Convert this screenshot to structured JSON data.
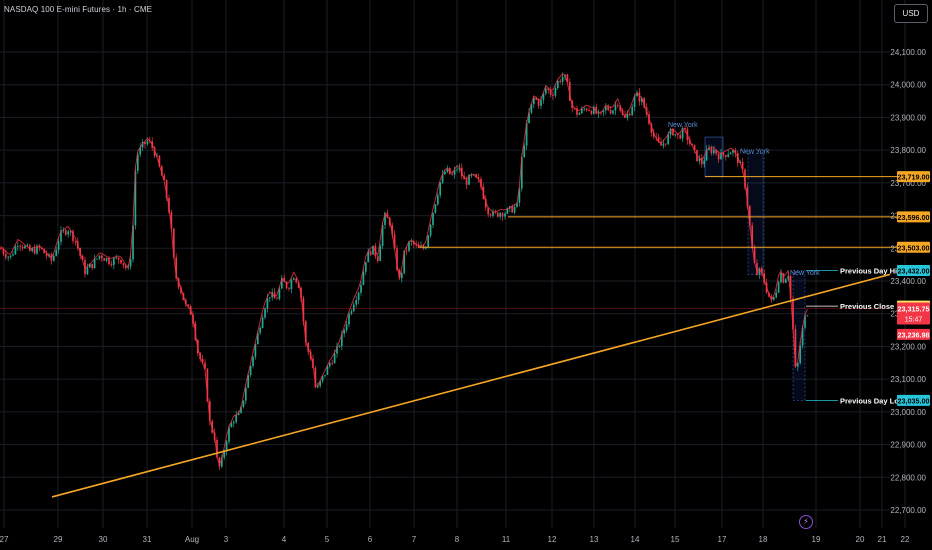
{
  "header": {
    "title": "NASDAQ 100 E-mini Futures · 1h · CME",
    "currency": "USD"
  },
  "chart_data": {
    "type": "candlestick",
    "symbol": "NASDAQ 100 E-mini Futures",
    "interval": "1h",
    "exchange": "CME",
    "currency": "USD",
    "ylim": [
      22660,
      24170
    ],
    "y_ticks": [
      {
        "value": 24100,
        "label": "24,100.00"
      },
      {
        "value": 24000,
        "label": "24,000.00"
      },
      {
        "value": 23900,
        "label": "23,900.00"
      },
      {
        "value": 23800,
        "label": "23,800.00"
      },
      {
        "value": 23700,
        "label": "23,700.00"
      },
      {
        "value": 23600,
        "label": "23,600.00"
      },
      {
        "value": 23500,
        "label": "23,500.00"
      },
      {
        "value": 23400,
        "label": "23,400.00"
      },
      {
        "value": 23300,
        "label": "23,300.00"
      },
      {
        "value": 23200,
        "label": "23,200.00"
      },
      {
        "value": 23100,
        "label": "23,100.00"
      },
      {
        "value": 23000,
        "label": "23,000.00"
      },
      {
        "value": 22900,
        "label": "22,900.00"
      },
      {
        "value": 22800,
        "label": "22,800.00"
      },
      {
        "value": 22700,
        "label": "22,700.00"
      }
    ],
    "x_ticks": [
      "27",
      "29",
      "30",
      "31",
      "Aug",
      "3",
      "4",
      "5",
      "6",
      "7",
      "8",
      "11",
      "12",
      "13",
      "14",
      "15",
      "17",
      "18",
      "19",
      "20",
      "21",
      "22"
    ],
    "price_path": [
      [
        0,
        23500
      ],
      [
        10,
        23470
      ],
      [
        18,
        23520
      ],
      [
        30,
        23490
      ],
      [
        40,
        23500
      ],
      [
        52,
        23460
      ],
      [
        60,
        23540
      ],
      [
        68,
        23560
      ],
      [
        76,
        23520
      ],
      [
        85,
        23430
      ],
      [
        92,
        23450
      ],
      [
        100,
        23480
      ],
      [
        110,
        23460
      ],
      [
        120,
        23470
      ],
      [
        128,
        23430
      ],
      [
        132,
        23500
      ],
      [
        136,
        23780
      ],
      [
        142,
        23810
      ],
      [
        148,
        23830
      ],
      [
        154,
        23800
      ],
      [
        158,
        23760
      ],
      [
        164,
        23700
      ],
      [
        170,
        23600
      ],
      [
        175,
        23420
      ],
      [
        180,
        23380
      ],
      [
        186,
        23320
      ],
      [
        192,
        23300
      ],
      [
        198,
        23180
      ],
      [
        205,
        23120
      ],
      [
        210,
        22960
      ],
      [
        215,
        22920
      ],
      [
        218,
        22820
      ],
      [
        222,
        22850
      ],
      [
        228,
        22940
      ],
      [
        234,
        22980
      ],
      [
        240,
        22990
      ],
      [
        246,
        23080
      ],
      [
        252,
        23160
      ],
      [
        258,
        23240
      ],
      [
        264,
        23320
      ],
      [
        270,
        23360
      ],
      [
        276,
        23340
      ],
      [
        282,
        23400
      ],
      [
        288,
        23380
      ],
      [
        294,
        23420
      ],
      [
        300,
        23380
      ],
      [
        306,
        23200
      ],
      [
        312,
        23160
      ],
      [
        316,
        23060
      ],
      [
        322,
        23100
      ],
      [
        330,
        23150
      ],
      [
        336,
        23180
      ],
      [
        342,
        23230
      ],
      [
        348,
        23290
      ],
      [
        354,
        23340
      ],
      [
        360,
        23380
      ],
      [
        366,
        23470
      ],
      [
        372,
        23500
      ],
      [
        378,
        23470
      ],
      [
        384,
        23600
      ],
      [
        390,
        23580
      ],
      [
        396,
        23460
      ],
      [
        400,
        23390
      ],
      [
        404,
        23480
      ],
      [
        410,
        23520
      ],
      [
        418,
        23500
      ],
      [
        425,
        23500
      ],
      [
        432,
        23600
      ],
      [
        440,
        23700
      ],
      [
        446,
        23740
      ],
      [
        452,
        23720
      ],
      [
        458,
        23750
      ],
      [
        465,
        23700
      ],
      [
        472,
        23720
      ],
      [
        480,
        23700
      ],
      [
        487,
        23620
      ],
      [
        494,
        23600
      ],
      [
        500,
        23610
      ],
      [
        506,
        23610
      ],
      [
        512,
        23620
      ],
      [
        518,
        23630
      ],
      [
        522,
        23780
      ],
      [
        528,
        23900
      ],
      [
        534,
        23960
      ],
      [
        540,
        23940
      ],
      [
        546,
        23990
      ],
      [
        552,
        23970
      ],
      [
        558,
        24010
      ],
      [
        564,
        24030
      ],
      [
        568,
        23990
      ],
      [
        572,
        23930
      ],
      [
        578,
        23910
      ],
      [
        586,
        23930
      ],
      [
        594,
        23920
      ],
      [
        600,
        23900
      ],
      [
        606,
        23930
      ],
      [
        612,
        23920
      ],
      [
        618,
        23950
      ],
      [
        624,
        23890
      ],
      [
        630,
        23920
      ],
      [
        636,
        23970
      ],
      [
        642,
        23950
      ],
      [
        648,
        23900
      ],
      [
        654,
        23840
      ],
      [
        660,
        23810
      ],
      [
        666,
        23830
      ],
      [
        672,
        23860
      ],
      [
        678,
        23840
      ],
      [
        684,
        23860
      ],
      [
        690,
        23820
      ],
      [
        696,
        23780
      ],
      [
        702,
        23760
      ],
      [
        708,
        23800
      ],
      [
        714,
        23800
      ],
      [
        720,
        23780
      ],
      [
        726,
        23790
      ],
      [
        732,
        23800
      ],
      [
        738,
        23770
      ],
      [
        744,
        23720
      ],
      [
        748,
        23620
      ],
      [
        752,
        23500
      ],
      [
        756,
        23420
      ],
      [
        760,
        23430
      ],
      [
        764,
        23400
      ],
      [
        768,
        23360
      ],
      [
        772,
        23330
      ],
      [
        776,
        23370
      ],
      [
        780,
        23430
      ],
      [
        784,
        23400
      ],
      [
        788,
        23430
      ],
      [
        792,
        23300
      ],
      [
        796,
        23100
      ],
      [
        800,
        23200
      ],
      [
        804,
        23280
      ],
      [
        808,
        23310
      ]
    ],
    "trendline": {
      "from": [
        52,
        22740
      ],
      "to": [
        890,
        23420
      ],
      "color": "#f5a623"
    },
    "levels": [
      {
        "price": 23719,
        "label": "23,719.00",
        "start_x": 705,
        "color": "#f5a623"
      },
      {
        "price": 23596,
        "label": "23,596.00",
        "start_x": 508,
        "color": "#f5a623"
      },
      {
        "price": 23503,
        "label": "23,503.00",
        "start_x": 418,
        "color": "#f5a623"
      }
    ],
    "key_levels": [
      {
        "name": "Previous Day High",
        "price": 23432,
        "label": "23,432.00",
        "color": "#26c6da"
      },
      {
        "name": "Previous Close",
        "price": 23323.25,
        "label": "23,323.25",
        "color": "#ffffff"
      },
      {
        "name": "Previous Day Low",
        "price": 23035,
        "label": "23,035.00",
        "color": "#26c6da"
      }
    ],
    "current_price": {
      "label": "23,315.75",
      "countdown": "15:47",
      "price": 23315.75,
      "color": "#f23645"
    },
    "other_price_label": {
      "label": "23,236.98",
      "price": 23236.98,
      "color": "#f23645"
    },
    "session_labels": [
      {
        "text": "New York",
        "x": 668,
        "price": 23870
      },
      {
        "text": "New York",
        "x": 740,
        "price": 23790
      },
      {
        "text": "New York",
        "x": 790,
        "price": 23418
      }
    ],
    "colors": {
      "up": "#22ab94",
      "down": "#f23645",
      "ma": "#f23645",
      "grid": "#1b1e26",
      "axis_text": "#b2b5be"
    }
  }
}
